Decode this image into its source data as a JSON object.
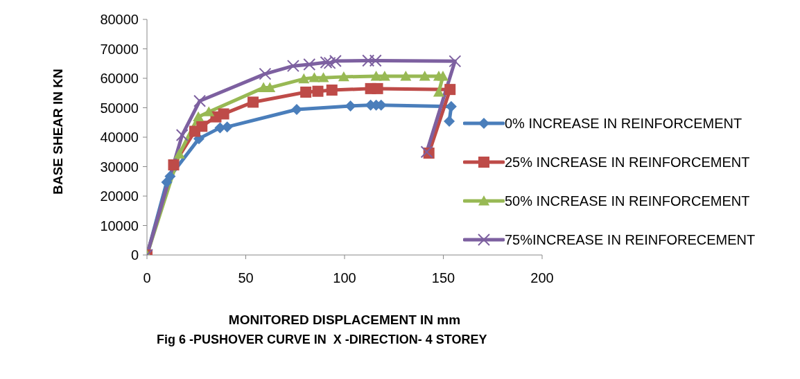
{
  "chart_data": {
    "type": "line",
    "title": "Fig 6 -PUSHOVER CURVE IN  X -DIRECTION- 4 STOREY",
    "xlabel": "MONITORED DISPLACEMENT IN mm",
    "ylabel": "BASE SHEAR IN KN",
    "xlim": [
      0,
      200
    ],
    "xticks": [
      0,
      50,
      100,
      150,
      200
    ],
    "ylim": [
      0,
      80000
    ],
    "yticks": [
      0,
      10000,
      20000,
      30000,
      40000,
      50000,
      60000,
      70000,
      80000
    ],
    "grid": false,
    "legend": "right",
    "line_style": "solid",
    "series": [
      {
        "name": "0% INCREASE IN REINFORCEMENT",
        "color": "#4a7ebb",
        "marker": "diamond",
        "x": [
          0,
          10,
          11.7,
          26.3,
          37,
          40.6,
          75.8,
          103,
          113.2,
          116,
          118.5,
          154,
          153
        ],
        "values": [
          0,
          24700,
          26700,
          39500,
          43200,
          43500,
          49400,
          50600,
          50900,
          50900,
          50900,
          50400,
          45400
        ]
      },
      {
        "name": "25% INCREASE IN REINFORCEMENT",
        "color": "#be4b48",
        "marker": "square",
        "x": [
          0,
          13.5,
          24.2,
          27.8,
          34.9,
          38.8,
          53.7,
          80.4,
          86.5,
          93.6,
          113.2,
          116.7,
          153.4,
          142.7
        ],
        "values": [
          0,
          30600,
          42000,
          43700,
          46900,
          47900,
          51900,
          55300,
          55600,
          56000,
          56500,
          56500,
          56200,
          34600
        ]
      },
      {
        "name": "50% INCREASE IN REINFORCEMENT",
        "color": "#98b954",
        "marker": "triangle",
        "x": [
          0,
          16.4,
          26,
          31.3,
          59,
          62.2,
          79.4,
          84.7,
          89.3,
          99.6,
          116,
          120.3,
          131,
          140.6,
          147.7,
          149.8,
          147.7
        ],
        "values": [
          0,
          34300,
          46900,
          48600,
          56800,
          56800,
          59800,
          60200,
          60200,
          60500,
          60700,
          60700,
          60700,
          60700,
          60700,
          60700,
          55300
        ]
      },
      {
        "name": "75%INCREASE IN REINFORECEMENT",
        "color": "#7d60a0",
        "marker": "cross",
        "x": [
          0,
          17.8,
          26.7,
          59.8,
          74,
          82.2,
          90.7,
          92.5,
          95.4,
          112,
          115.7,
          155.9,
          141.6
        ],
        "values": [
          0,
          40700,
          52300,
          61500,
          64200,
          64700,
          65400,
          65200,
          65900,
          66000,
          66000,
          65800,
          35000
        ]
      }
    ]
  }
}
